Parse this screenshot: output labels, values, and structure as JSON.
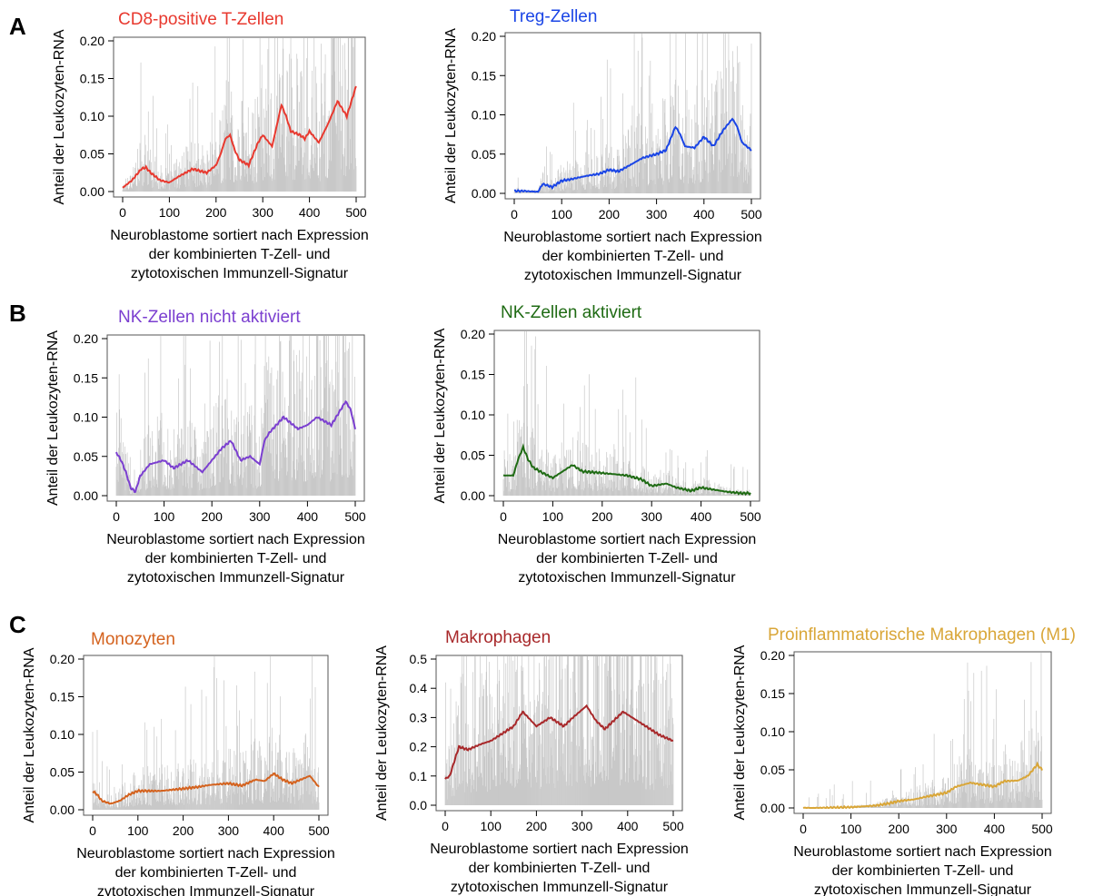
{
  "panel_labels": [
    "A",
    "B",
    "C"
  ],
  "chart_data": [
    {
      "type": "line",
      "panel": "A",
      "title": "CD8-positive T-Zellen",
      "title_color": "#e8392f",
      "line_color": "#e8392f",
      "bar_color": "#c8c8c8",
      "xlabel": "Neuroblastome sortiert nach Expression\nder kombinierten T-Zell- und\nzytotoxischen Immunzell-Signatur",
      "ylabel": "Anteil der Leukozyten-RNA",
      "xlim": [
        0,
        500
      ],
      "ylim": [
        0,
        0.2
      ],
      "xticks": [
        0,
        100,
        200,
        300,
        400,
        500
      ],
      "yticks": [
        "0.00",
        "0.05",
        "0.10",
        "0.15",
        "0.20"
      ],
      "grid": false,
      "bar_max_fraction": 0.2,
      "series": [
        {
          "x": [
            0,
            20,
            40,
            50,
            60,
            80,
            100,
            120,
            150,
            180,
            200,
            210,
            220,
            230,
            240,
            250,
            270,
            290,
            300,
            320,
            340,
            350,
            360,
            380,
            390,
            400,
            420,
            440,
            460,
            480,
            500
          ],
          "values": [
            0.005,
            0.015,
            0.03,
            0.032,
            0.025,
            0.015,
            0.012,
            0.02,
            0.03,
            0.025,
            0.035,
            0.05,
            0.07,
            0.075,
            0.055,
            0.042,
            0.035,
            0.065,
            0.075,
            0.06,
            0.115,
            0.1,
            0.08,
            0.075,
            0.07,
            0.08,
            0.065,
            0.09,
            0.12,
            0.1,
            0.14
          ]
        }
      ]
    },
    {
      "type": "line",
      "panel": "A",
      "title": "Treg-Zellen",
      "title_color": "#1a45e6",
      "line_color": "#1a45e6",
      "bar_color": "#c8c8c8",
      "xlabel": "Neuroblastome sortiert nach Expression\nder kombinierten T-Zell- und\nzytotoxischen Immunzell-Signatur",
      "ylabel": "Anteil der Leukozyten-RNA",
      "xlim": [
        0,
        500
      ],
      "ylim": [
        0,
        0.2
      ],
      "xticks": [
        0,
        100,
        200,
        300,
        400,
        500
      ],
      "yticks": [
        "0.00",
        "0.05",
        "0.10",
        "0.15",
        "0.20"
      ],
      "grid": false,
      "bar_max_fraction": 0.2,
      "series": [
        {
          "x": [
            0,
            20,
            50,
            60,
            80,
            100,
            120,
            150,
            180,
            200,
            220,
            250,
            270,
            300,
            320,
            340,
            350,
            360,
            380,
            400,
            420,
            440,
            460,
            470,
            480,
            500
          ],
          "values": [
            0.003,
            0.003,
            0.002,
            0.012,
            0.008,
            0.016,
            0.018,
            0.022,
            0.025,
            0.03,
            0.028,
            0.038,
            0.045,
            0.05,
            0.055,
            0.085,
            0.075,
            0.06,
            0.058,
            0.072,
            0.06,
            0.08,
            0.095,
            0.085,
            0.065,
            0.055
          ]
        }
      ]
    },
    {
      "type": "line",
      "panel": "B",
      "title": "NK-Zellen nicht aktiviert",
      "title_color": "#7b3fd0",
      "line_color": "#7b3fd0",
      "bar_color": "#c8c8c8",
      "xlabel": "Neuroblastome sortiert nach Expression\nder kombinierten T-Zell- und\nzytotoxischen Immunzell-Signatur",
      "ylabel": "Anteil der Leukozyten-RNA",
      "xlim": [
        0,
        500
      ],
      "ylim": [
        0,
        0.2
      ],
      "xticks": [
        0,
        100,
        200,
        300,
        400,
        500
      ],
      "yticks": [
        "0.00",
        "0.05",
        "0.10",
        "0.15",
        "0.20"
      ],
      "grid": false,
      "bar_max_fraction": 0.2,
      "series": [
        {
          "x": [
            0,
            10,
            20,
            30,
            40,
            50,
            70,
            100,
            120,
            150,
            180,
            200,
            220,
            240,
            260,
            280,
            300,
            310,
            320,
            350,
            380,
            400,
            420,
            450,
            480,
            490,
            500
          ],
          "values": [
            0.055,
            0.045,
            0.03,
            0.01,
            0.005,
            0.025,
            0.04,
            0.045,
            0.035,
            0.045,
            0.03,
            0.045,
            0.06,
            0.07,
            0.045,
            0.05,
            0.04,
            0.07,
            0.08,
            0.1,
            0.085,
            0.09,
            0.1,
            0.09,
            0.12,
            0.11,
            0.085
          ]
        }
      ]
    },
    {
      "type": "line",
      "panel": "B",
      "title": "NK-Zellen aktiviert",
      "title_color": "#1f6b14",
      "line_color": "#1f6b14",
      "bar_color": "#c8c8c8",
      "xlabel": "Neuroblastome sortiert nach Expression\nder kombinierten T-Zell- und\nzytotoxischen Immunzell-Signatur",
      "ylabel": "Anteil der Leukozyten-RNA",
      "xlim": [
        0,
        500
      ],
      "ylim": [
        0,
        0.2
      ],
      "xticks": [
        0,
        100,
        200,
        300,
        400,
        500
      ],
      "yticks": [
        "0.00",
        "0.05",
        "0.10",
        "0.15",
        "0.20"
      ],
      "grid": false,
      "bar_max_fraction": 0.2,
      "series": [
        {
          "x": [
            0,
            20,
            30,
            40,
            50,
            60,
            80,
            100,
            120,
            140,
            160,
            200,
            250,
            280,
            300,
            330,
            350,
            380,
            400,
            420,
            450,
            480,
            500
          ],
          "values": [
            0.025,
            0.025,
            0.045,
            0.06,
            0.045,
            0.035,
            0.028,
            0.022,
            0.03,
            0.038,
            0.03,
            0.028,
            0.025,
            0.02,
            0.012,
            0.015,
            0.01,
            0.006,
            0.01,
            0.008,
            0.005,
            0.003,
            0.003
          ]
        }
      ]
    },
    {
      "type": "line",
      "panel": "C",
      "title": "Monozyten",
      "title_color": "#d4621e",
      "line_color": "#d4621e",
      "bar_color": "#c8c8c8",
      "xlabel": "Neuroblastome sortiert nach Expression\nder kombinierten T-Zell- und\nzytotoxischen Immunzell-Signatur",
      "ylabel": "Anteil der Leukozyten-RNA",
      "xlim": [
        0,
        500
      ],
      "ylim": [
        0,
        0.2
      ],
      "xticks": [
        0,
        100,
        200,
        300,
        400,
        500
      ],
      "yticks": [
        "0.00",
        "0.05",
        "0.10",
        "0.15",
        "0.20"
      ],
      "grid": false,
      "bar_max_fraction": 0.16,
      "series": [
        {
          "x": [
            0,
            10,
            20,
            40,
            60,
            80,
            100,
            150,
            200,
            230,
            260,
            300,
            330,
            360,
            380,
            400,
            420,
            440,
            460,
            480,
            500
          ],
          "values": [
            0.025,
            0.02,
            0.012,
            0.008,
            0.012,
            0.02,
            0.025,
            0.025,
            0.028,
            0.03,
            0.033,
            0.035,
            0.032,
            0.04,
            0.038,
            0.048,
            0.04,
            0.035,
            0.04,
            0.045,
            0.03
          ]
        }
      ]
    },
    {
      "type": "line",
      "panel": "C",
      "title": "Makrophagen",
      "title_color": "#a8282a",
      "line_color": "#a8282a",
      "bar_color": "#c8c8c8",
      "xlabel": "Neuroblastome sortiert nach Expression\nder kombinierten T-Zell- und\nzytotoxischen Immunzell-Signatur",
      "ylabel": "Anteil der Leukozyten-RNA",
      "xlim": [
        0,
        500
      ],
      "ylim": [
        0,
        0.5
      ],
      "xticks": [
        0,
        100,
        200,
        300,
        400,
        500
      ],
      "yticks": [
        "0.0",
        "0.1",
        "0.2",
        "0.3",
        "0.4",
        "0.5"
      ],
      "grid": false,
      "bar_max_fraction": 0.5,
      "series": [
        {
          "x": [
            0,
            10,
            30,
            50,
            80,
            100,
            130,
            150,
            170,
            200,
            230,
            260,
            280,
            310,
            330,
            350,
            370,
            390,
            410,
            440,
            470,
            500
          ],
          "values": [
            0.09,
            0.1,
            0.2,
            0.19,
            0.21,
            0.22,
            0.25,
            0.27,
            0.32,
            0.27,
            0.3,
            0.27,
            0.3,
            0.34,
            0.29,
            0.26,
            0.29,
            0.32,
            0.3,
            0.27,
            0.24,
            0.22
          ]
        }
      ]
    },
    {
      "type": "line",
      "panel": "C",
      "title": "Proinflammatorische Makrophagen (M1)",
      "title_color": "#d9a638",
      "line_color": "#d9a638",
      "bar_color": "#c8c8c8",
      "xlabel": "Neuroblastome sortiert nach Expression\nder kombinierten T-Zell- und\nzytotoxischen Immunzell-Signatur",
      "ylabel": "Anteil der Leukozyten-RNA",
      "xlim": [
        0,
        500
      ],
      "ylim": [
        0,
        0.2
      ],
      "xticks": [
        0,
        100,
        200,
        300,
        400,
        500
      ],
      "yticks": [
        "0.00",
        "0.05",
        "0.10",
        "0.15",
        "0.20"
      ],
      "grid": false,
      "bar_max_fraction": 0.2,
      "series": [
        {
          "x": [
            0,
            50,
            100,
            150,
            180,
            200,
            230,
            260,
            300,
            320,
            350,
            380,
            400,
            420,
            450,
            470,
            490,
            500
          ],
          "values": [
            0,
            0,
            0.001,
            0.003,
            0.006,
            0.009,
            0.011,
            0.015,
            0.02,
            0.028,
            0.033,
            0.03,
            0.028,
            0.035,
            0.036,
            0.042,
            0.057,
            0.05
          ]
        }
      ]
    }
  ]
}
